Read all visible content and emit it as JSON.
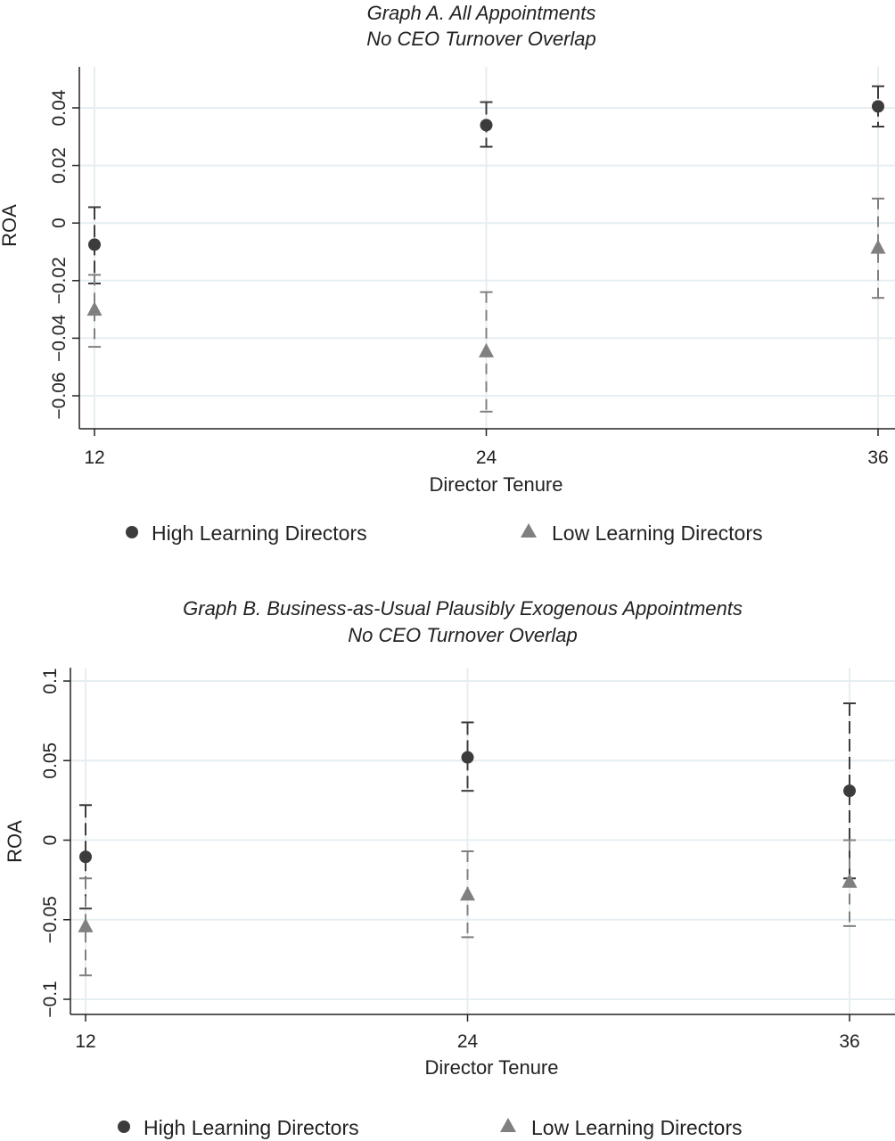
{
  "chart_data": [
    {
      "type": "scatter",
      "title": "Graph A. All Appointments",
      "subtitle": "No CEO Turnover Overlap",
      "xlabel": "Director Tenure",
      "ylabel": "ROA",
      "x_ticks": [
        12,
        24,
        36
      ],
      "y_ticks": [
        0.04,
        0.02,
        0,
        -0.02,
        -0.04,
        -0.06
      ],
      "y_tick_labels": [
        "0.04",
        "0.02",
        "0",
        "−0.02",
        "−0.04",
        "−0.06"
      ],
      "xlim": [
        12,
        36
      ],
      "ylim": [
        -0.07,
        0.045
      ],
      "grid": true,
      "legend_position": "bottom",
      "series": [
        {
          "name": "High Learning Directors",
          "marker": "circle",
          "color": "#3c3c3c",
          "points": [
            {
              "x": 12,
              "y": -0.0075,
              "lo": -0.021,
              "hi": 0.0055
            },
            {
              "x": 24,
              "y": 0.034,
              "lo": 0.0265,
              "hi": 0.042
            },
            {
              "x": 36,
              "y": 0.0405,
              "lo": 0.0335,
              "hi": 0.0475
            }
          ]
        },
        {
          "name": "Low Learning Directors",
          "marker": "triangle",
          "color": "#808080",
          "points": [
            {
              "x": 12,
              "y": -0.03,
              "lo": -0.043,
              "hi": -0.018
            },
            {
              "x": 24,
              "y": -0.0445,
              "lo": -0.0655,
              "hi": -0.024
            },
            {
              "x": 36,
              "y": -0.0085,
              "lo": -0.026,
              "hi": 0.0085
            }
          ]
        }
      ]
    },
    {
      "type": "scatter",
      "title": "Graph B. Business-as-Usual Plausibly Exogenous Appointments",
      "subtitle": "No CEO Turnover Overlap",
      "xlabel": "Director Tenure",
      "ylabel": "ROA",
      "x_ticks": [
        12,
        24,
        36
      ],
      "y_ticks": [
        0.1,
        0.05,
        0,
        -0.05,
        -0.1
      ],
      "y_tick_labels": [
        "0.1",
        "0.05",
        "0",
        "−0.05",
        "−0.1"
      ],
      "xlim": [
        12,
        36
      ],
      "ylim": [
        -0.11,
        0.11
      ],
      "grid": true,
      "legend_position": "bottom",
      "series": [
        {
          "name": "High Learning Directors",
          "marker": "circle",
          "color": "#3c3c3c",
          "points": [
            {
              "x": 12,
              "y": -0.0105,
              "lo": -0.043,
              "hi": 0.022
            },
            {
              "x": 24,
              "y": 0.052,
              "lo": 0.031,
              "hi": 0.074
            },
            {
              "x": 36,
              "y": 0.031,
              "lo": -0.024,
              "hi": 0.086
            }
          ]
        },
        {
          "name": "Low Learning Directors",
          "marker": "triangle",
          "color": "#808080",
          "points": [
            {
              "x": 12,
              "y": -0.054,
              "lo": -0.085,
              "hi": -0.024
            },
            {
              "x": 24,
              "y": -0.034,
              "lo": -0.061,
              "hi": -0.007
            },
            {
              "x": 36,
              "y": -0.026,
              "lo": -0.054,
              "hi": 0.0
            }
          ]
        }
      ]
    }
  ]
}
